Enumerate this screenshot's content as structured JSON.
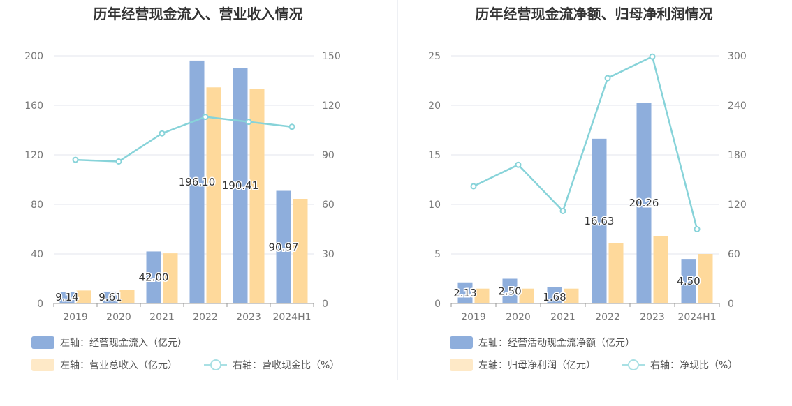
{
  "chart_data": [
    {
      "type": "bar",
      "title": "历年经营现金流入、营业收入情况",
      "categories": [
        "2019",
        "2020",
        "2021",
        "2022",
        "2023",
        "2024H1"
      ],
      "left_axis": {
        "ylim": [
          0,
          200
        ],
        "ticks": [
          0,
          40,
          80,
          120,
          160,
          200
        ]
      },
      "right_axis": {
        "ylim": [
          0,
          150
        ],
        "ticks": [
          0,
          30,
          60,
          90,
          120,
          150
        ]
      },
      "grid": true,
      "legend_position": "bottom",
      "series": [
        {
          "name": "左轴：经营现金流入（亿元）",
          "type": "bar",
          "axis": "left",
          "color": "#8eaedc",
          "values": [
            9.14,
            9.61,
            42.0,
            196.1,
            190.41,
            90.97
          ],
          "labels": [
            "9.14",
            "9.61",
            "42.00",
            "196.10",
            "190.41",
            "90.97"
          ]
        },
        {
          "name": "左轴：营业总收入（亿元）",
          "type": "bar",
          "axis": "left",
          "color": "#fed99b",
          "values": [
            10.5,
            11.0,
            40.5,
            174.5,
            173.5,
            84.5
          ]
        },
        {
          "name": "右轴：营收现金比（%）",
          "type": "line",
          "axis": "right",
          "color": "#87d3d9",
          "values": [
            87,
            86,
            103,
            113,
            110,
            107
          ]
        }
      ]
    },
    {
      "type": "bar",
      "title": "历年经营现金流净额、归母净利润情况",
      "categories": [
        "2019",
        "2020",
        "2021",
        "2022",
        "2023",
        "2024H1"
      ],
      "left_axis": {
        "ylim": [
          0,
          25
        ],
        "ticks": [
          0,
          5,
          10,
          15,
          20,
          25
        ]
      },
      "right_axis": {
        "ylim": [
          0,
          300
        ],
        "ticks": [
          0,
          60,
          120,
          180,
          240,
          300
        ]
      },
      "grid": true,
      "legend_position": "bottom",
      "series": [
        {
          "name": "左轴：经营活动现金流净额（亿元）",
          "type": "bar",
          "axis": "left",
          "color": "#8eaedc",
          "values": [
            2.13,
            2.5,
            1.68,
            16.63,
            20.26,
            4.5
          ],
          "labels": [
            "2.13",
            "2.50",
            "1.68",
            "16.63",
            "20.26",
            "4.50"
          ]
        },
        {
          "name": "左轴：归母净利润（亿元）",
          "type": "bar",
          "axis": "left",
          "color": "#fed99b",
          "values": [
            1.5,
            1.5,
            1.5,
            6.1,
            6.8,
            5.0
          ]
        },
        {
          "name": "右轴：净现比（%）",
          "type": "line",
          "axis": "right",
          "color": "#87d3d9",
          "values": [
            142,
            168,
            112,
            273,
            299,
            90
          ]
        }
      ]
    }
  ]
}
